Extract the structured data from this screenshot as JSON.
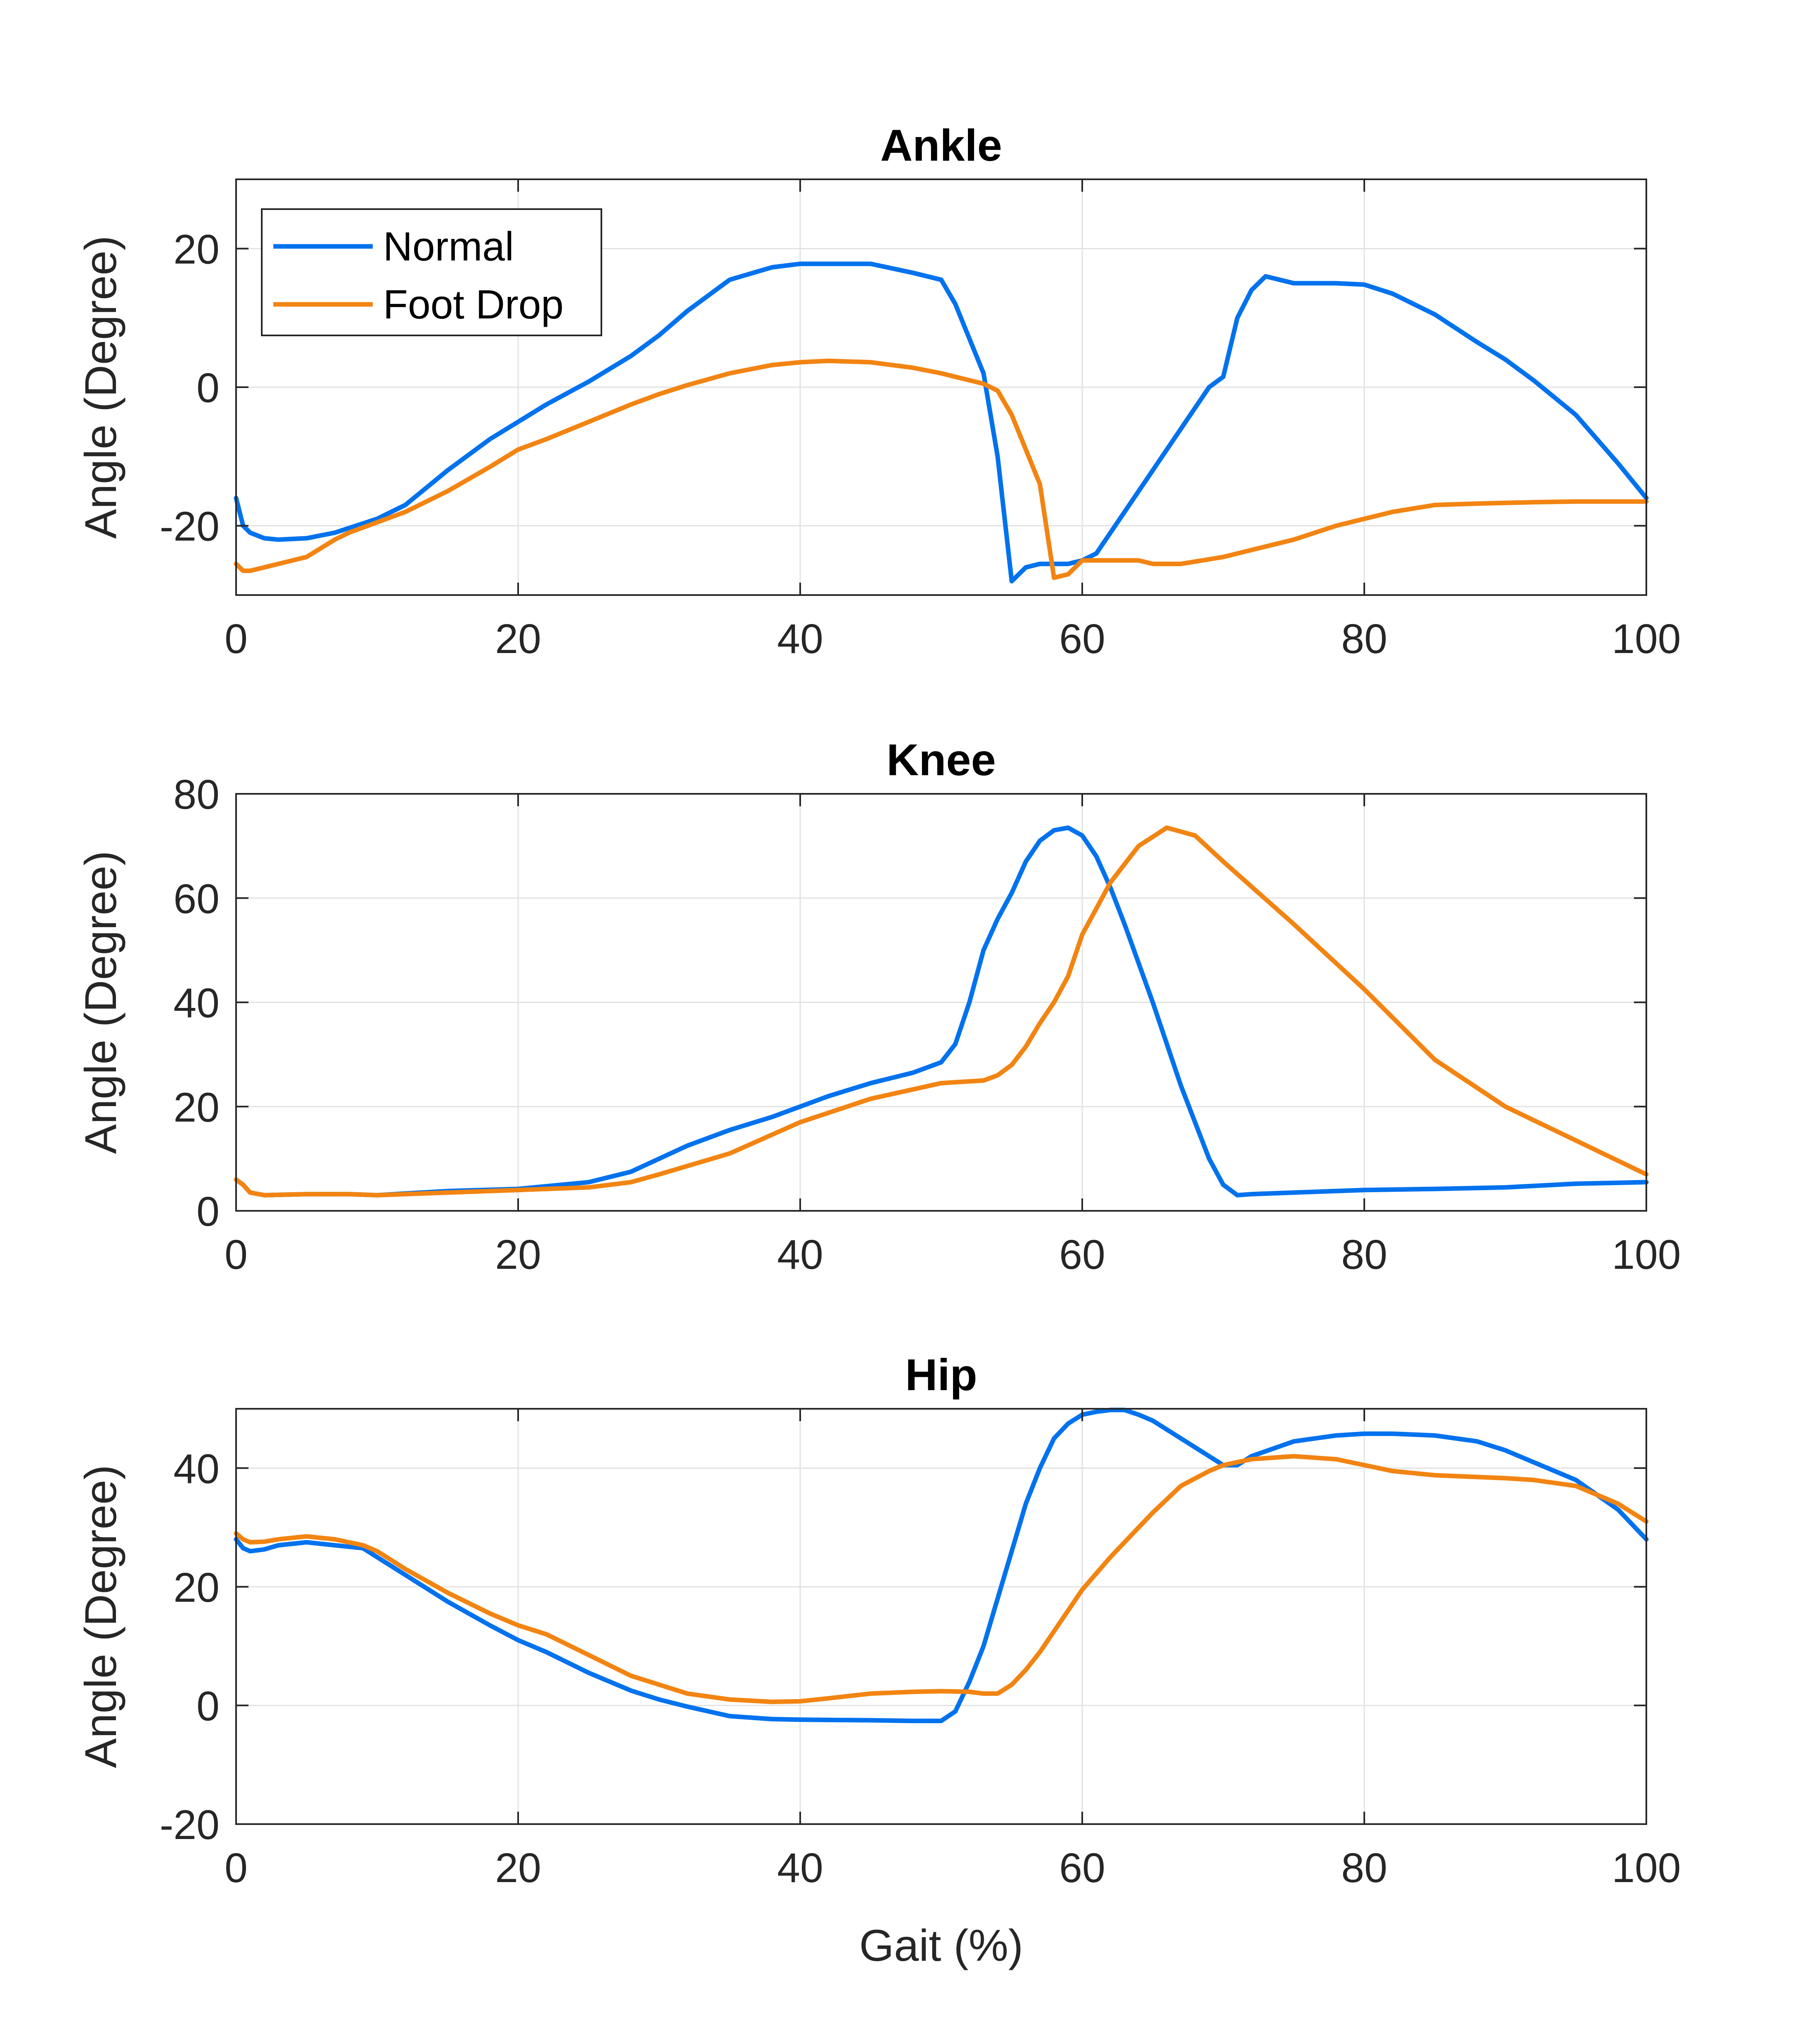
{
  "colors": {
    "normal": "#0072EE",
    "foot_drop": "#F28412"
  },
  "legend": {
    "placement": "top-left",
    "entries": [
      "Normal",
      "Foot Drop"
    ]
  },
  "chart_data": [
    {
      "type": "line",
      "title": "Ankle",
      "xlabel": "",
      "ylabel": "Angle (Degree)",
      "xlim": [
        0,
        100
      ],
      "ylim": [
        -30,
        30
      ],
      "xticks": [
        0,
        20,
        40,
        60,
        80,
        100
      ],
      "yticks": [
        -20,
        0,
        20
      ],
      "grid": true,
      "series": [
        {
          "name": "Normal",
          "color": "#0072EE",
          "x": [
            0,
            0.5,
            1,
            2,
            3,
            5,
            7,
            10,
            12,
            15,
            18,
            20,
            22,
            25,
            28,
            30,
            32,
            35,
            38,
            40,
            45,
            48,
            50,
            51,
            52,
            53,
            54,
            55,
            55.5,
            56,
            57,
            58,
            59,
            60,
            61,
            62,
            63,
            65,
            67,
            69,
            70,
            71,
            72,
            73,
            74,
            75,
            76,
            78,
            80,
            82,
            85,
            88,
            90,
            92,
            95,
            98,
            100
          ],
          "y": [
            -16,
            -20,
            -21,
            -21.8,
            -22,
            -21.8,
            -21,
            -19,
            -17,
            -12,
            -7.5,
            -5,
            -2.5,
            0.8,
            4.5,
            7.5,
            11,
            15.5,
            17.3,
            17.8,
            17.8,
            16.5,
            15.5,
            12,
            7,
            2,
            -10,
            -28,
            -27,
            -26,
            -25.5,
            -25.5,
            -25.5,
            -25,
            -24,
            -21,
            -18,
            -12,
            -6,
            0,
            1.5,
            10,
            14,
            16,
            15.5,
            15,
            15,
            15,
            14.8,
            13.5,
            10.5,
            6.5,
            4,
            1,
            -4,
            -11,
            -16
          ]
        },
        {
          "name": "Foot Drop",
          "color": "#F28412",
          "x": [
            0,
            0.5,
            1,
            2,
            3,
            5,
            7,
            8,
            10,
            12,
            15,
            18,
            20,
            22,
            25,
            28,
            30,
            32,
            35,
            38,
            40,
            42,
            45,
            48,
            50,
            52,
            53,
            54,
            55,
            56,
            57,
            58,
            59,
            60,
            62,
            64,
            65,
            67,
            70,
            72,
            75,
            78,
            80,
            82,
            85,
            88,
            90,
            92,
            95,
            98,
            100
          ],
          "y": [
            -25.5,
            -26.5,
            -26.5,
            -26,
            -25.5,
            -24.5,
            -22,
            -21,
            -19.5,
            -18,
            -15,
            -11.5,
            -9,
            -7.5,
            -5,
            -2.5,
            -1,
            0.3,
            2,
            3.2,
            3.6,
            3.8,
            3.6,
            2.8,
            2,
            1,
            0.5,
            -0.5,
            -4,
            -9,
            -14,
            -27.5,
            -27,
            -25,
            -25,
            -25,
            -25.5,
            -25.5,
            -24.5,
            -23.5,
            -22,
            -20,
            -19,
            -18,
            -17,
            -16.8,
            -16.7,
            -16.6,
            -16.5,
            -16.5,
            -16.5
          ]
        }
      ]
    },
    {
      "type": "line",
      "title": "Knee",
      "xlabel": "",
      "ylabel": "Angle (Degree)",
      "xlim": [
        0,
        100
      ],
      "ylim": [
        0,
        80
      ],
      "xticks": [
        0,
        20,
        40,
        60,
        80,
        100
      ],
      "yticks": [
        0,
        20,
        40,
        60,
        80
      ],
      "grid": true,
      "series": [
        {
          "name": "Normal",
          "color": "#0072EE",
          "x": [
            0,
            0.5,
            1,
            2,
            5,
            8,
            10,
            15,
            20,
            25,
            28,
            30,
            32,
            35,
            38,
            40,
            42,
            45,
            48,
            50,
            51,
            52,
            53,
            54,
            55,
            56,
            57,
            58,
            59,
            60,
            61,
            62,
            63,
            65,
            67,
            69,
            70,
            71,
            72,
            75,
            80,
            85,
            90,
            95,
            100
          ],
          "y": [
            6,
            5,
            3.5,
            3,
            3.2,
            3.2,
            3,
            3.8,
            4.2,
            5.5,
            7.5,
            10,
            12.5,
            15.5,
            18,
            20,
            22,
            24.5,
            26.5,
            28.5,
            32,
            40,
            50,
            56,
            61,
            67,
            71,
            73,
            73.5,
            72,
            68,
            62,
            55,
            40,
            24,
            10,
            5,
            3,
            3.2,
            3.5,
            4,
            4.2,
            4.5,
            5.2,
            5.5
          ]
        },
        {
          "name": "Foot Drop",
          "color": "#F28412",
          "x": [
            0,
            0.5,
            1,
            2,
            5,
            8,
            10,
            15,
            20,
            25,
            28,
            30,
            35,
            40,
            45,
            50,
            53,
            54,
            55,
            56,
            57,
            58,
            59,
            60,
            62,
            64,
            66,
            68,
            70,
            75,
            80,
            85,
            90,
            95,
            100
          ],
          "y": [
            6,
            5,
            3.5,
            3,
            3.2,
            3.2,
            3,
            3.5,
            4,
            4.5,
            5.5,
            7,
            11,
            17,
            21.5,
            24.5,
            25,
            26,
            28,
            31.5,
            36,
            40,
            45,
            53,
            63,
            70,
            73.5,
            72,
            67,
            55,
            42.5,
            29,
            20,
            13.5,
            7
          ]
        }
      ]
    },
    {
      "type": "line",
      "title": "Hip",
      "xlabel": "Gait (%)",
      "ylabel": "Angle (Degree)",
      "xlim": [
        0,
        100
      ],
      "ylim": [
        -20,
        50
      ],
      "xticks": [
        0,
        20,
        40,
        60,
        80,
        100
      ],
      "yticks": [
        -20,
        0,
        20,
        40
      ],
      "grid": true,
      "series": [
        {
          "name": "Normal",
          "color": "#0072EE",
          "x": [
            0,
            0.5,
            1,
            2,
            3,
            5,
            7,
            9,
            10,
            12,
            15,
            18,
            20,
            22,
            25,
            28,
            30,
            32,
            35,
            38,
            40,
            45,
            48,
            50,
            51,
            52,
            53,
            54,
            55,
            56,
            57,
            58,
            59,
            60,
            61,
            62,
            63,
            64,
            65,
            67,
            69,
            70,
            71,
            72,
            75,
            78,
            80,
            82,
            85,
            88,
            90,
            92,
            95,
            98,
            100
          ],
          "y": [
            28,
            26.5,
            26,
            26.3,
            27,
            27.5,
            27,
            26.5,
            25,
            22,
            17.5,
            13.5,
            11,
            9,
            5.5,
            2.5,
            1,
            -0.2,
            -1.8,
            -2.3,
            -2.4,
            -2.5,
            -2.6,
            -2.6,
            -1,
            4,
            10,
            18,
            26,
            34,
            40,
            45,
            47.5,
            49,
            49.5,
            49.8,
            49.8,
            49,
            48,
            45,
            42,
            40.5,
            40.5,
            42,
            44.5,
            45.5,
            45.8,
            45.8,
            45.5,
            44.5,
            43,
            41,
            38,
            33,
            28
          ]
        },
        {
          "name": "Foot Drop",
          "color": "#F28412",
          "x": [
            0,
            0.5,
            1,
            2,
            3,
            5,
            7,
            9,
            10,
            12,
            15,
            18,
            20,
            22,
            25,
            28,
            30,
            32,
            35,
            38,
            40,
            42,
            45,
            48,
            50,
            52,
            53,
            54,
            55,
            56,
            57,
            58,
            59,
            60,
            62,
            64,
            65,
            67,
            69,
            70,
            72,
            75,
            78,
            80,
            82,
            85,
            88,
            90,
            92,
            95,
            98,
            100
          ],
          "y": [
            29,
            28,
            27.5,
            27.6,
            28,
            28.5,
            28,
            27,
            26,
            23,
            19,
            15.5,
            13.5,
            12,
            8.5,
            5,
            3.5,
            2,
            1,
            0.6,
            0.7,
            1.2,
            2,
            2.3,
            2.4,
            2.3,
            2,
            2,
            3.5,
            6,
            9,
            12.5,
            16,
            19.5,
            25,
            30,
            32.5,
            37,
            39.5,
            40.5,
            41.5,
            42,
            41.5,
            40.5,
            39.5,
            38.8,
            38.5,
            38.3,
            38,
            37,
            34,
            31
          ]
        }
      ]
    }
  ]
}
